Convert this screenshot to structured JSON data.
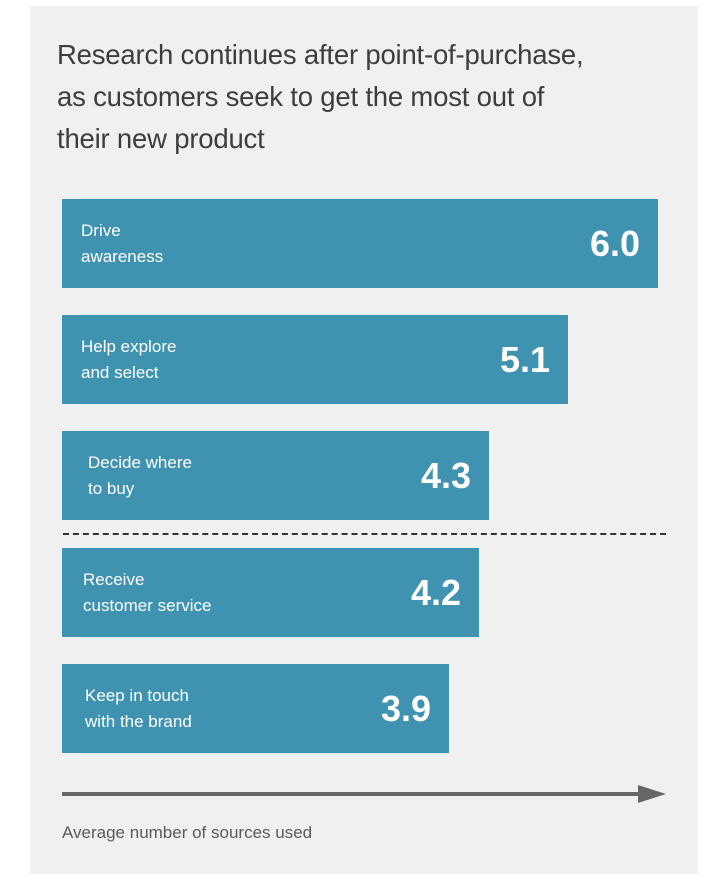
{
  "chart_data": {
    "type": "bar",
    "orientation": "horizontal",
    "title": "Research continues after point-of-purchase, as customers seek to get the most out of their new product",
    "title_lines": [
      "Research continues after point-of-purchase,",
      "as customers seek to get the most out of",
      "their new product"
    ],
    "xlabel": "Average number of sources used",
    "ylabel": "",
    "categories": [
      [
        "Drive",
        "awareness"
      ],
      [
        "Help explore",
        "and select"
      ],
      [
        "Decide where",
        "to buy"
      ],
      [
        "Receive",
        "customer service"
      ],
      [
        "Keep in touch",
        "with the brand"
      ]
    ],
    "values": [
      6.0,
      5.1,
      4.3,
      4.2,
      3.9
    ],
    "value_labels": [
      "6.0",
      "5.1",
      "4.3",
      "4.2",
      "3.9"
    ],
    "divider_after_index": 2,
    "grid": false,
    "legend": "none",
    "colors": {
      "bar": "#3f93b1",
      "background": "#f0f0f0",
      "axis": "#666666",
      "title": "#3d3d3d"
    }
  }
}
